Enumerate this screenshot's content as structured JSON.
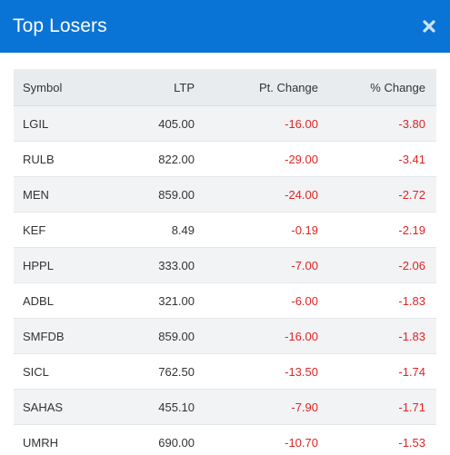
{
  "modal": {
    "title": "Top Losers",
    "close_icon": "close-icon"
  },
  "table": {
    "columns": [
      "Symbol",
      "LTP",
      "Pt. Change",
      "% Change"
    ],
    "rows": [
      {
        "symbol": "LGIL",
        "ltp": "405.00",
        "pt_change": "-16.00",
        "pct_change": "-3.80"
      },
      {
        "symbol": "RULB",
        "ltp": "822.00",
        "pt_change": "-29.00",
        "pct_change": "-3.41"
      },
      {
        "symbol": "MEN",
        "ltp": "859.00",
        "pt_change": "-24.00",
        "pct_change": "-2.72"
      },
      {
        "symbol": "KEF",
        "ltp": "8.49",
        "pt_change": "-0.19",
        "pct_change": "-2.19"
      },
      {
        "symbol": "HPPL",
        "ltp": "333.00",
        "pt_change": "-7.00",
        "pct_change": "-2.06"
      },
      {
        "symbol": "ADBL",
        "ltp": "321.00",
        "pt_change": "-6.00",
        "pct_change": "-1.83"
      },
      {
        "symbol": "SMFDB",
        "ltp": "859.00",
        "pt_change": "-16.00",
        "pct_change": "-1.83"
      },
      {
        "symbol": "SICL",
        "ltp": "762.50",
        "pt_change": "-13.50",
        "pct_change": "-1.74"
      },
      {
        "symbol": "SAHAS",
        "ltp": "455.10",
        "pt_change": "-7.90",
        "pct_change": "-1.71"
      },
      {
        "symbol": "UMRH",
        "ltp": "690.00",
        "pt_change": "-10.70",
        "pct_change": "-1.53"
      }
    ]
  },
  "colors": {
    "header_bg": "#0a74d6",
    "negative": "#e02424",
    "table_head_bg": "#e9ecef",
    "row_stripe": "#f2f3f5"
  }
}
